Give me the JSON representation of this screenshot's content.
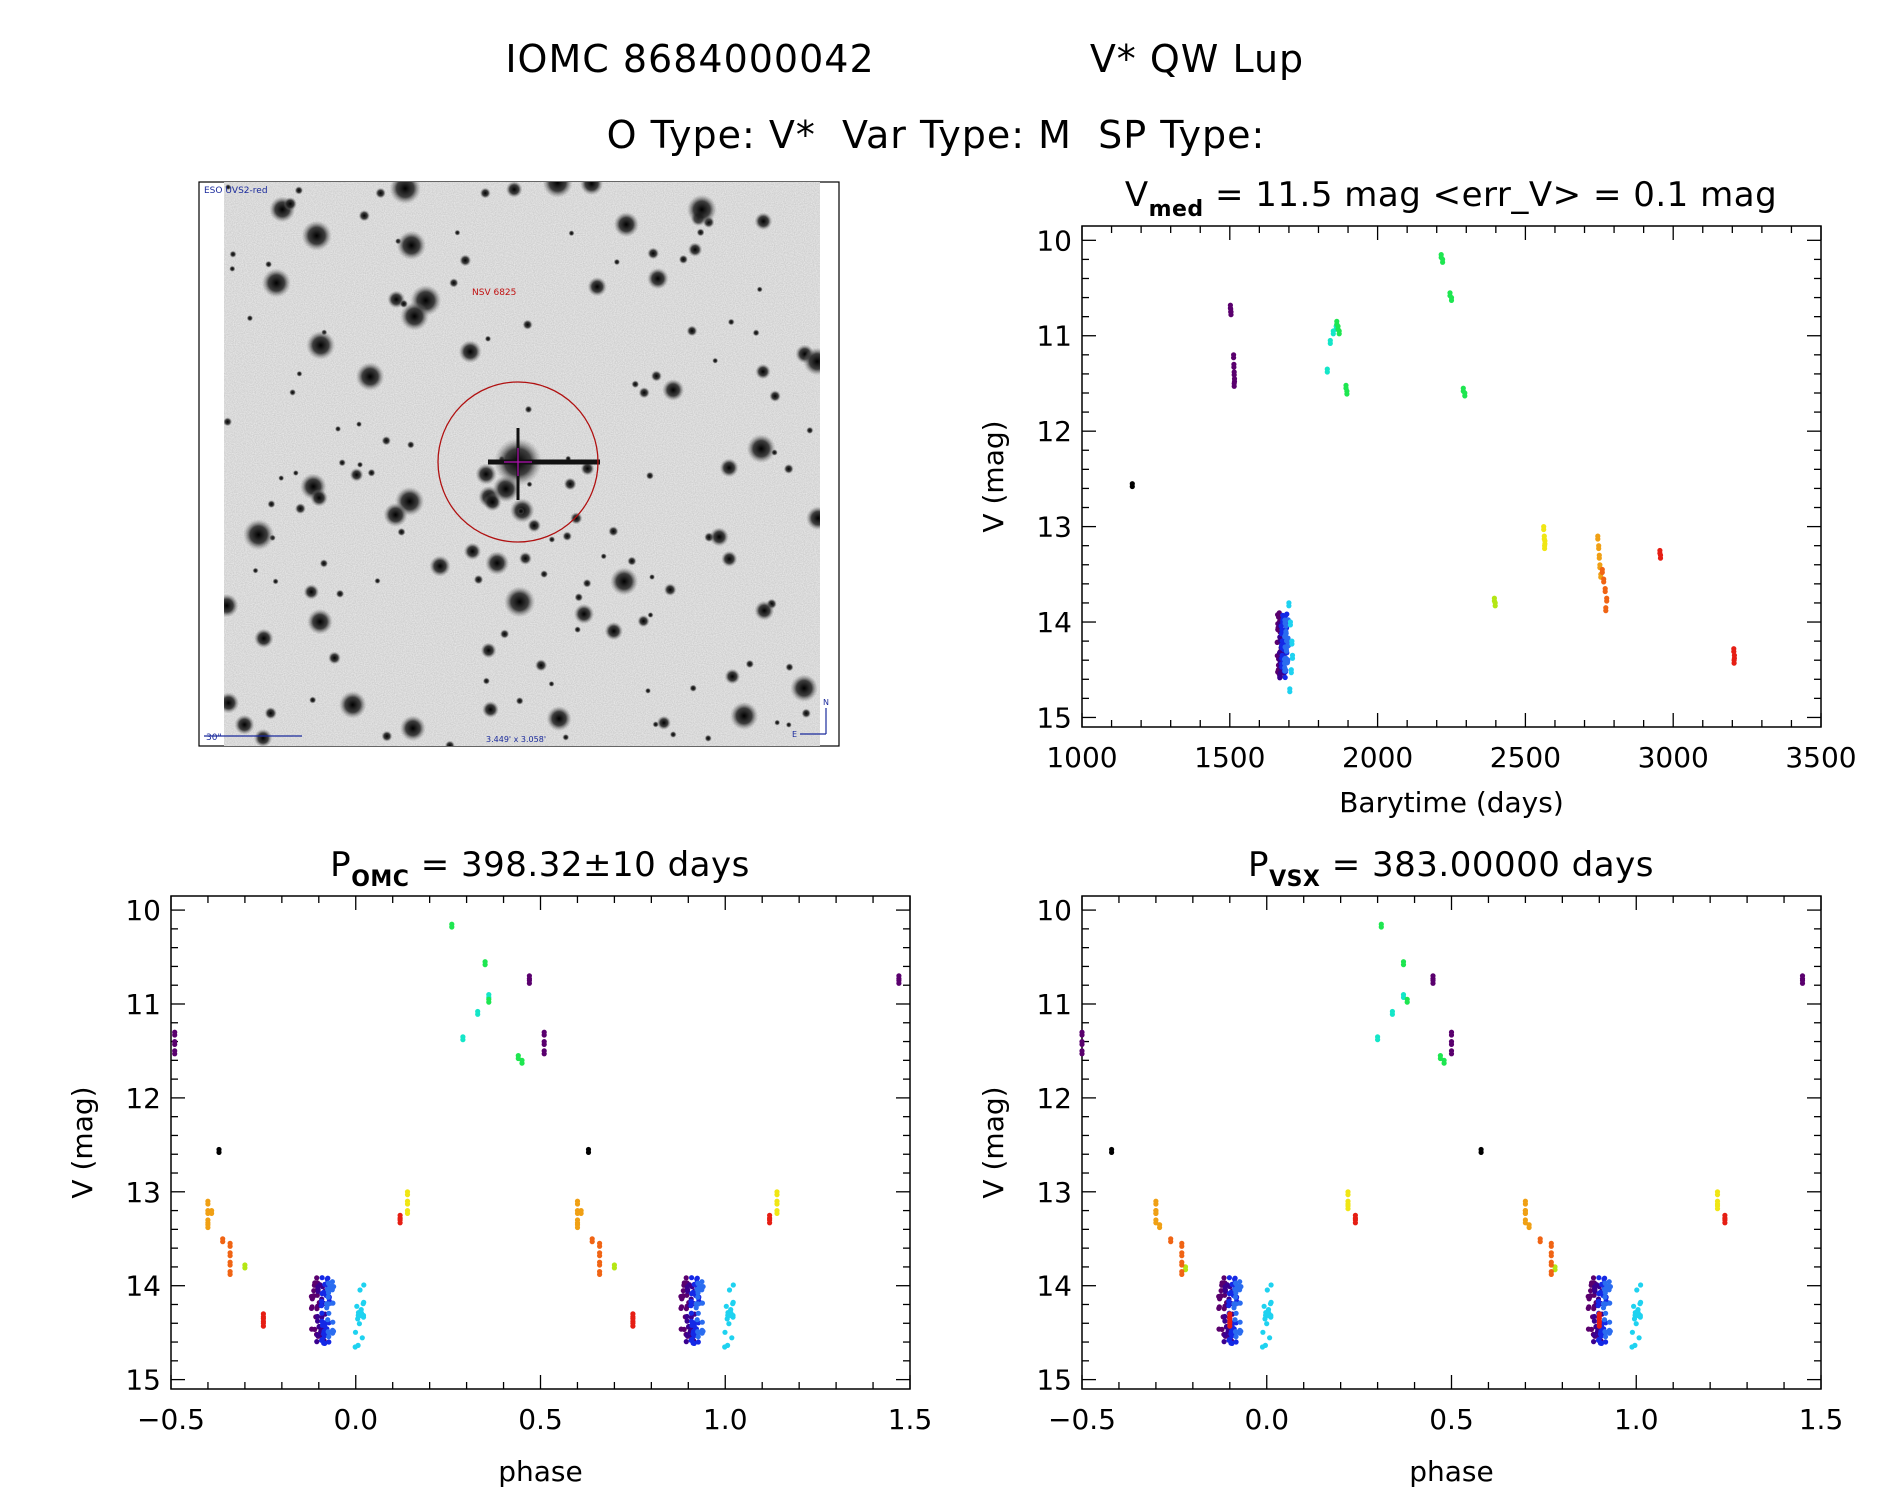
{
  "header": {
    "line1_left": "IOMC 8684000042",
    "line1_right": "V* QW Lup",
    "line2": "O Type: V*  Var Type: M  SP Type:"
  },
  "image_panel": {
    "survey_label": "ESO UVS2-red",
    "object_label": "NSV 6825",
    "scale_label": "30\"",
    "fov_label": "3.449' x 3.058'",
    "compass": [
      "N",
      "E"
    ]
  },
  "colors": {
    "black": "#000000",
    "purple": "#5a006e",
    "indigo": "#3a0090",
    "blue": "#1428e6",
    "azure": "#2a6cf0",
    "cyan": "#1ed2f0",
    "mint": "#14e6c8",
    "green": "#1ee650",
    "yellowgreen": "#b4e614",
    "yellow": "#f0e614",
    "orange": "#f0a014",
    "darkorange": "#f06414",
    "red": "#e61e14"
  },
  "chart_data": [
    {
      "id": "lightcurve",
      "type": "scatter",
      "title": {
        "main": "V",
        "sub": "med",
        "rest": " = 11.5 mag <err_V> = 0.1 mag"
      },
      "xlabel": "Barytime (days)",
      "ylabel": "V (mag)",
      "xlim": [
        1000,
        3500
      ],
      "ylim": [
        15.1,
        9.85
      ],
      "xticks": [
        "1000",
        "1500",
        "2000",
        "2500",
        "3000",
        "3500"
      ],
      "xtick_values": [
        1000,
        1500,
        2000,
        2500,
        3000,
        3500
      ],
      "yticks": [
        "10",
        "11",
        "12",
        "13",
        "14",
        "15"
      ],
      "ytick_values": [
        10,
        11,
        12,
        13,
        14,
        15
      ],
      "series": [
        {
          "color": "#000000",
          "x": [
            1170
          ],
          "y": [
            12.55
          ]
        },
        {
          "color": "#5a006e",
          "x": [
            1502,
            1503,
            1504,
            1513,
            1514,
            1515,
            1516,
            1515
          ],
          "y": [
            10.68,
            10.72,
            10.75,
            11.2,
            11.3,
            11.38,
            11.45,
            11.5
          ]
        },
        {
          "color": "#1ed2f0",
          "x": [
            1700,
            1705,
            1710,
            1712,
            1708,
            1703
          ],
          "y": [
            13.8,
            14.0,
            14.2,
            14.35,
            14.5,
            14.7
          ]
        },
        {
          "color": "#14e6c8",
          "x": [
            1830,
            1840,
            1850,
            1860
          ],
          "y": [
            11.35,
            11.05,
            10.95,
            10.9
          ]
        },
        {
          "color": "#1ee650",
          "x": [
            1862,
            1866,
            1870,
            1893,
            1896,
            2215,
            2220,
            2245,
            2250,
            2290,
            2295
          ],
          "y": [
            10.85,
            10.9,
            10.95,
            11.52,
            11.58,
            10.15,
            10.2,
            10.55,
            10.6,
            11.55,
            11.6
          ]
        },
        {
          "color": "#b4e614",
          "x": [
            2395,
            2398
          ],
          "y": [
            13.75,
            13.8
          ]
        },
        {
          "color": "#f0e614",
          "x": [
            2562,
            2564,
            2566,
            2565
          ],
          "y": [
            13.0,
            13.1,
            13.15,
            13.2
          ]
        },
        {
          "color": "#f0a014",
          "x": [
            2745,
            2748,
            2750,
            2752,
            2755
          ],
          "y": [
            13.1,
            13.2,
            13.3,
            13.4,
            13.5
          ]
        },
        {
          "color": "#f06414",
          "x": [
            2760,
            2765,
            2770,
            2775,
            2772
          ],
          "y": [
            13.45,
            13.55,
            13.65,
            13.75,
            13.85
          ]
        },
        {
          "color": "#e61e14",
          "x": [
            2955,
            2957,
            3205,
            3207,
            3206
          ],
          "y": [
            13.25,
            13.3,
            14.28,
            14.35,
            14.4
          ]
        }
      ],
      "dense_clusters": [
        {
          "color": "#5a006e",
          "x_center": 1668,
          "x_spread": 8,
          "y_min": 13.9,
          "y_max": 14.55,
          "count": 30
        },
        {
          "color": "#3a0090",
          "x_center": 1676,
          "x_spread": 8,
          "y_min": 13.95,
          "y_max": 14.6,
          "count": 30
        },
        {
          "color": "#1428e6",
          "x_center": 1684,
          "x_spread": 10,
          "y_min": 13.9,
          "y_max": 14.62,
          "count": 45
        },
        {
          "color": "#2a6cf0",
          "x_center": 1692,
          "x_spread": 8,
          "y_min": 13.95,
          "y_max": 14.55,
          "count": 30
        }
      ]
    },
    {
      "id": "phase_omc",
      "type": "scatter",
      "title": {
        "main": "P",
        "sub": "OMC",
        "rest": " = 398.32±10 days"
      },
      "xlabel": "phase",
      "ylabel": "V (mag)",
      "xlim": [
        -0.5,
        1.5
      ],
      "ylim": [
        15.1,
        9.85
      ],
      "xticks": [
        "−0.5",
        "0.0",
        "0.5",
        "1.0",
        "1.5"
      ],
      "xtick_values": [
        -0.5,
        0.0,
        0.5,
        1.0,
        1.5
      ],
      "yticks": [
        "10",
        "11",
        "12",
        "13",
        "14",
        "15"
      ],
      "ytick_values": [
        10,
        11,
        12,
        13,
        14,
        15
      ],
      "base_points": [
        {
          "color": "#000000",
          "x": [
            -0.37
          ],
          "y": [
            12.55
          ]
        },
        {
          "color": "#5a006e",
          "x": [
            -0.49,
            -0.49,
            -0.49,
            0.47,
            0.47
          ],
          "y": [
            11.3,
            11.4,
            11.5,
            10.7,
            10.75
          ]
        },
        {
          "color": "#14e6c8",
          "x": [
            -0.71,
            -0.67,
            -0.64
          ],
          "y": [
            11.35,
            11.08,
            10.9
          ]
        },
        {
          "color": "#1ee650",
          "x": [
            -0.74,
            -0.65,
            -0.64,
            -0.56,
            -0.55
          ],
          "y": [
            10.15,
            10.55,
            10.95,
            11.55,
            11.6
          ]
        },
        {
          "color": "#b4e614",
          "x": [
            -0.3
          ],
          "y": [
            13.78
          ]
        },
        {
          "color": "#f0e614",
          "x": [
            0.14,
            0.14,
            0.14
          ],
          "y": [
            13.0,
            13.1,
            13.2
          ]
        },
        {
          "color": "#f0a014",
          "x": [
            -0.4,
            -0.4,
            -0.4,
            -0.4,
            -0.39
          ],
          "y": [
            13.1,
            13.2,
            13.3,
            13.35,
            13.2
          ]
        },
        {
          "color": "#f06414",
          "x": [
            -0.36,
            -0.34,
            -0.34,
            -0.34,
            -0.34
          ],
          "y": [
            13.5,
            13.55,
            13.65,
            13.75,
            13.85
          ]
        },
        {
          "color": "#e61e14",
          "x": [
            0.12,
            0.12,
            -0.25,
            -0.25,
            -0.25
          ],
          "y": [
            13.25,
            13.3,
            14.3,
            14.35,
            14.4
          ]
        }
      ],
      "dense_clusters": [
        {
          "color": "#5a006e",
          "x_center": -0.11,
          "x_spread": 0.012,
          "y_min": 13.9,
          "y_max": 14.55,
          "count": 25
        },
        {
          "color": "#3a0090",
          "x_center": -0.095,
          "x_spread": 0.012,
          "y_min": 13.95,
          "y_max": 14.6,
          "count": 25
        },
        {
          "color": "#1428e6",
          "x_center": -0.08,
          "x_spread": 0.014,
          "y_min": 13.9,
          "y_max": 14.62,
          "count": 35
        },
        {
          "color": "#2a6cf0",
          "x_center": -0.07,
          "x_spread": 0.01,
          "y_min": 13.95,
          "y_max": 14.55,
          "count": 25
        },
        {
          "color": "#1ed2f0",
          "x_center": 0.01,
          "x_spread": 0.012,
          "y_min": 13.8,
          "y_max": 14.7,
          "count": 18
        }
      ],
      "repeat_offsets": [
        0,
        1
      ]
    },
    {
      "id": "phase_vsx",
      "type": "scatter",
      "title": {
        "main": "P",
        "sub": "VSX",
        "rest": " = 383.00000 days"
      },
      "xlabel": "phase",
      "ylabel": "V (mag)",
      "xlim": [
        -0.5,
        1.5
      ],
      "ylim": [
        15.1,
        9.85
      ],
      "xticks": [
        "−0.5",
        "0.0",
        "0.5",
        "1.0",
        "1.5"
      ],
      "xtick_values": [
        -0.5,
        0.0,
        0.5,
        1.0,
        1.5
      ],
      "yticks": [
        "10",
        "11",
        "12",
        "13",
        "14",
        "15"
      ],
      "ytick_values": [
        10,
        11,
        12,
        13,
        14,
        15
      ],
      "base_points": [
        {
          "color": "#000000",
          "x": [
            -0.42
          ],
          "y": [
            12.55
          ]
        },
        {
          "color": "#5a006e",
          "x": [
            -0.5,
            -0.5,
            -0.5,
            0.45,
            0.45
          ],
          "y": [
            11.3,
            11.4,
            11.5,
            10.7,
            10.75
          ]
        },
        {
          "color": "#14e6c8",
          "x": [
            -0.7,
            -0.66,
            -0.63
          ],
          "y": [
            11.35,
            11.08,
            10.9
          ]
        },
        {
          "color": "#1ee650",
          "x": [
            -0.69,
            -0.63,
            -0.62,
            -0.53,
            -0.52
          ],
          "y": [
            10.15,
            10.55,
            10.95,
            11.55,
            11.6
          ]
        },
        {
          "color": "#b4e614",
          "x": [
            -0.22
          ],
          "y": [
            13.8
          ]
        },
        {
          "color": "#f0e614",
          "x": [
            0.22,
            0.22,
            0.22
          ],
          "y": [
            13.0,
            13.1,
            13.15
          ]
        },
        {
          "color": "#f0a014",
          "x": [
            -0.3,
            -0.3,
            -0.3,
            -0.29,
            -0.3
          ],
          "y": [
            13.1,
            13.2,
            13.3,
            13.35,
            13.2
          ]
        },
        {
          "color": "#f06414",
          "x": [
            -0.26,
            -0.23,
            -0.23,
            -0.23,
            -0.23
          ],
          "y": [
            13.5,
            13.55,
            13.65,
            13.75,
            13.85
          ]
        },
        {
          "color": "#e61e14",
          "x": [
            0.24,
            0.24,
            -0.1,
            -0.1,
            -0.1
          ],
          "y": [
            13.25,
            13.3,
            14.3,
            14.35,
            14.4
          ]
        }
      ],
      "dense_clusters": [
        {
          "color": "#5a006e",
          "x_center": -0.12,
          "x_spread": 0.012,
          "y_min": 13.9,
          "y_max": 14.55,
          "count": 25
        },
        {
          "color": "#3a0090",
          "x_center": -0.105,
          "x_spread": 0.012,
          "y_min": 13.95,
          "y_max": 14.6,
          "count": 25
        },
        {
          "color": "#1428e6",
          "x_center": -0.09,
          "x_spread": 0.014,
          "y_min": 13.9,
          "y_max": 14.62,
          "count": 35
        },
        {
          "color": "#2a6cf0",
          "x_center": -0.08,
          "x_spread": 0.01,
          "y_min": 13.95,
          "y_max": 14.55,
          "count": 25
        },
        {
          "color": "#1ed2f0",
          "x_center": 0.0,
          "x_spread": 0.012,
          "y_min": 13.8,
          "y_max": 14.7,
          "count": 18
        }
      ],
      "repeat_offsets": [
        0,
        1
      ]
    }
  ]
}
